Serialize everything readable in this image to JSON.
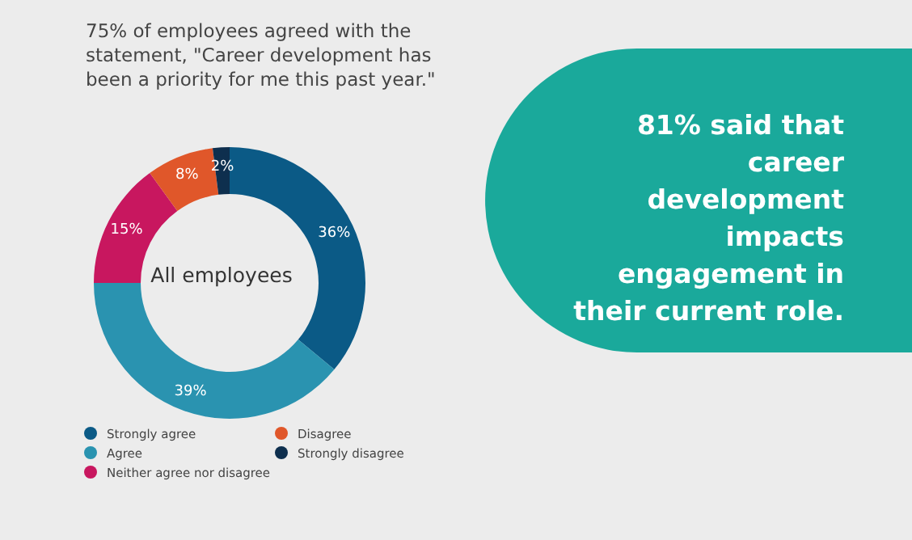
{
  "chart_data": [
    {
      "type": "donut",
      "title": "75% of employees agreed with the statement, \"Career development has been a priority for me this past year.\"",
      "annotations": [
        "All employees"
      ],
      "categories": [
        "Strongly agree",
        "Agree",
        "Neither agree nor disagree",
        "Disagree",
        "Strongly disagree"
      ],
      "values": [
        36,
        39,
        15,
        8,
        2
      ],
      "colors": [
        "#0b5a86",
        "#2a93b0",
        "#c8175f",
        "#e0572a",
        "#0e2f4e"
      ],
      "value_labels": [
        "36%",
        "39%",
        "15%",
        "8%",
        "2%"
      ],
      "legend": "bottom"
    },
    {
      "type": "other",
      "title": "81% said that career development impacts engagement in their current role."
    }
  ]
}
